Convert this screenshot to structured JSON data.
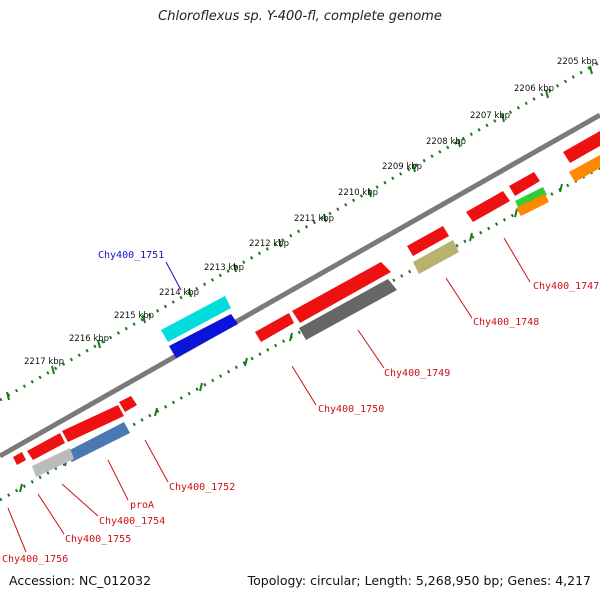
{
  "title": "Chloroflexus sp. Y-400-fl, complete genome",
  "footer": {
    "accession": "Accession: NC_012032",
    "summary": "Topology: circular; Length: 5,268,950 bp; Genes: 4,217"
  },
  "ticks": [
    "2205 kbp",
    "2206 kbp",
    "2207 kbp",
    "2208 kbp",
    "2209 kbp",
    "2210 kbp",
    "2211 kbp",
    "2212 kbp",
    "2213 kbp",
    "2214 kbp",
    "2215 kbp",
    "2216 kbp",
    "2217 kbp"
  ],
  "colors": {
    "backbone": "#7a7a7a",
    "tick_dots": "#1a7a1a",
    "cds": "#ee1111",
    "label_forward": "#1010cc",
    "label_reverse": "#cc1111"
  },
  "labels": {
    "chy1751": "Chy400_1751",
    "chy1747": "Chy400_1747",
    "chy1748": "Chy400_1748",
    "chy1749": "Chy400_1749",
    "chy1750": "Chy400_1750",
    "chy1752": "Chy400_1752",
    "proA": "proA",
    "chy1754": "Chy400_1754",
    "chy1755": "Chy400_1755",
    "chy1756": "Chy400_1756"
  }
}
